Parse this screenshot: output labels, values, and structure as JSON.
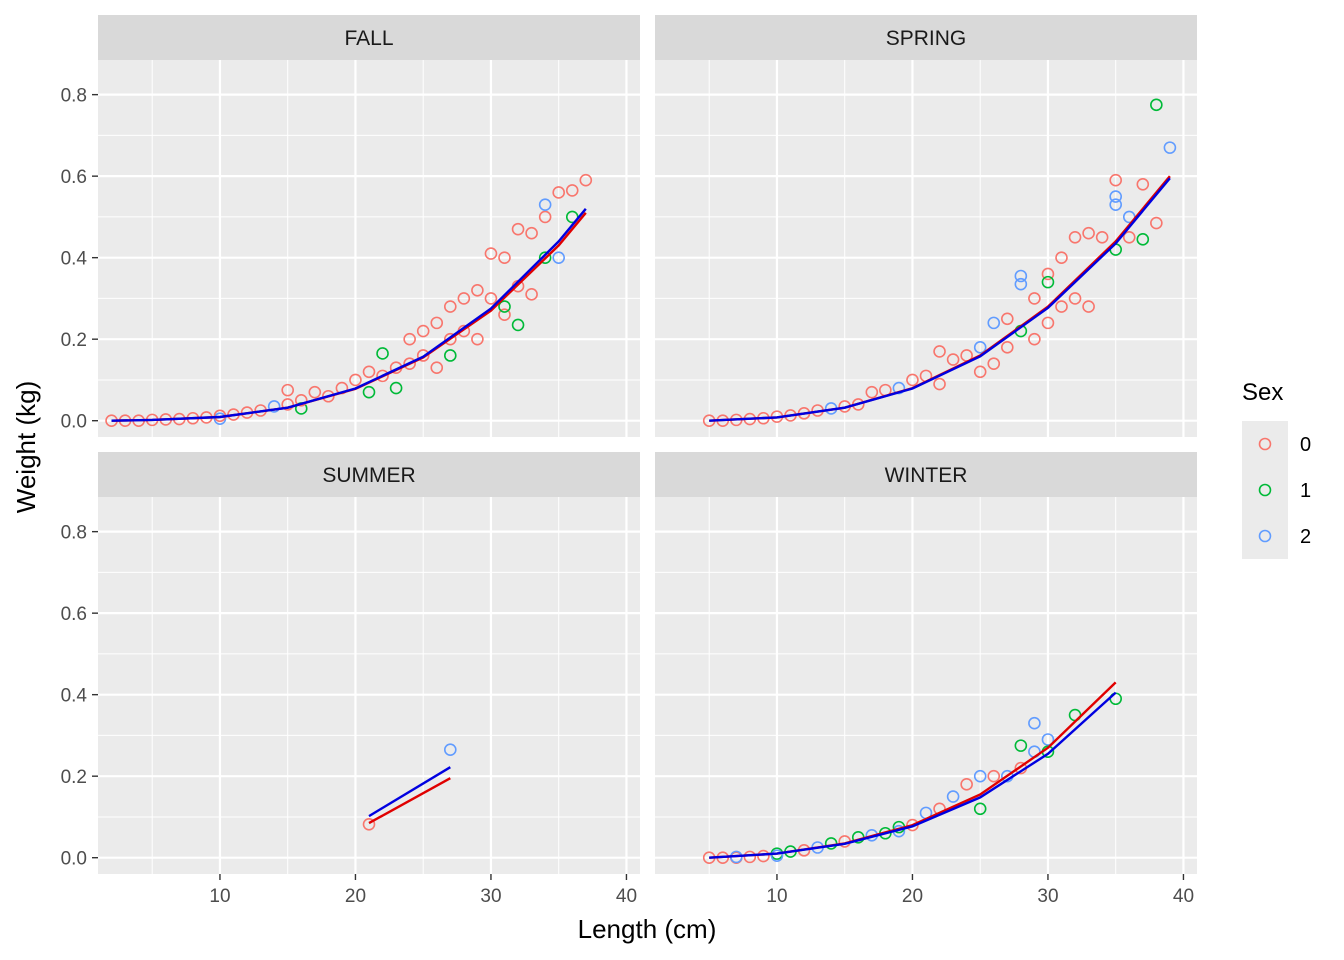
{
  "chart_data": {
    "type": "scatter",
    "facets": [
      "FALL",
      "SPRING",
      "SUMMER",
      "WINTER"
    ],
    "xlabel": "Length (cm)",
    "ylabel": "Weight (kg)",
    "xlim": [
      1,
      41
    ],
    "ylim": [
      -0.04,
      0.885
    ],
    "x_ticks": [
      10,
      20,
      30,
      40
    ],
    "y_ticks": [
      0.0,
      0.2,
      0.4,
      0.6,
      0.8
    ],
    "x_tick_labels": [
      "10",
      "20",
      "30",
      "40"
    ],
    "y_tick_labels": [
      "0.0",
      "0.2",
      "0.4",
      "0.6",
      "0.8"
    ],
    "legend": {
      "title": "Sex",
      "position": "right",
      "entries": [
        {
          "label": "0",
          "color": "#F8766D"
        },
        {
          "label": "1",
          "color": "#00BA38"
        },
        {
          "label": "2",
          "color": "#619CFF"
        }
      ]
    },
    "fit_line_colors": [
      "#E00000",
      "#0000E0"
    ],
    "panels": [
      {
        "name": "FALL",
        "points": [
          {
            "sex": 0,
            "x": 2,
            "y": 0.0
          },
          {
            "sex": 0,
            "x": 3,
            "y": 0.0
          },
          {
            "sex": 0,
            "x": 4,
            "y": 0.0
          },
          {
            "sex": 0,
            "x": 5,
            "y": 0.002
          },
          {
            "sex": 0,
            "x": 6,
            "y": 0.003
          },
          {
            "sex": 0,
            "x": 7,
            "y": 0.004
          },
          {
            "sex": 0,
            "x": 8,
            "y": 0.006
          },
          {
            "sex": 0,
            "x": 9,
            "y": 0.008
          },
          {
            "sex": 2,
            "x": 10,
            "y": 0.005
          },
          {
            "sex": 0,
            "x": 10,
            "y": 0.012
          },
          {
            "sex": 0,
            "x": 11,
            "y": 0.015
          },
          {
            "sex": 0,
            "x": 12,
            "y": 0.02
          },
          {
            "sex": 0,
            "x": 13,
            "y": 0.025
          },
          {
            "sex": 2,
            "x": 14,
            "y": 0.035
          },
          {
            "sex": 0,
            "x": 15,
            "y": 0.075
          },
          {
            "sex": 0,
            "x": 15,
            "y": 0.04
          },
          {
            "sex": 1,
            "x": 16,
            "y": 0.03
          },
          {
            "sex": 0,
            "x": 16,
            "y": 0.05
          },
          {
            "sex": 0,
            "x": 17,
            "y": 0.07
          },
          {
            "sex": 0,
            "x": 18,
            "y": 0.06
          },
          {
            "sex": 0,
            "x": 19,
            "y": 0.08
          },
          {
            "sex": 0,
            "x": 20,
            "y": 0.1
          },
          {
            "sex": 0,
            "x": 21,
            "y": 0.12
          },
          {
            "sex": 1,
            "x": 21,
            "y": 0.07
          },
          {
            "sex": 1,
            "x": 22,
            "y": 0.165
          },
          {
            "sex": 0,
            "x": 22,
            "y": 0.11
          },
          {
            "sex": 0,
            "x": 23,
            "y": 0.13
          },
          {
            "sex": 1,
            "x": 23,
            "y": 0.08
          },
          {
            "sex": 0,
            "x": 24,
            "y": 0.2
          },
          {
            "sex": 0,
            "x": 24,
            "y": 0.14
          },
          {
            "sex": 0,
            "x": 25,
            "y": 0.22
          },
          {
            "sex": 0,
            "x": 25,
            "y": 0.16
          },
          {
            "sex": 0,
            "x": 26,
            "y": 0.24
          },
          {
            "sex": 0,
            "x": 26,
            "y": 0.13
          },
          {
            "sex": 0,
            "x": 27,
            "y": 0.28
          },
          {
            "sex": 0,
            "x": 27,
            "y": 0.2
          },
          {
            "sex": 1,
            "x": 27,
            "y": 0.16
          },
          {
            "sex": 0,
            "x": 28,
            "y": 0.3
          },
          {
            "sex": 0,
            "x": 28,
            "y": 0.22
          },
          {
            "sex": 0,
            "x": 29,
            "y": 0.32
          },
          {
            "sex": 0,
            "x": 29,
            "y": 0.2
          },
          {
            "sex": 0,
            "x": 30,
            "y": 0.41
          },
          {
            "sex": 0,
            "x": 30,
            "y": 0.3
          },
          {
            "sex": 0,
            "x": 31,
            "y": 0.4
          },
          {
            "sex": 0,
            "x": 31,
            "y": 0.26
          },
          {
            "sex": 1,
            "x": 31,
            "y": 0.28
          },
          {
            "sex": 0,
            "x": 32,
            "y": 0.47
          },
          {
            "sex": 0,
            "x": 32,
            "y": 0.33
          },
          {
            "sex": 1,
            "x": 32,
            "y": 0.235
          },
          {
            "sex": 0,
            "x": 33,
            "y": 0.46
          },
          {
            "sex": 0,
            "x": 33,
            "y": 0.31
          },
          {
            "sex": 0,
            "x": 34,
            "y": 0.5
          },
          {
            "sex": 2,
            "x": 34,
            "y": 0.53
          },
          {
            "sex": 1,
            "x": 34,
            "y": 0.4
          },
          {
            "sex": 0,
            "x": 35,
            "y": 0.56
          },
          {
            "sex": 2,
            "x": 35,
            "y": 0.4
          },
          {
            "sex": 0,
            "x": 36,
            "y": 0.565
          },
          {
            "sex": 1,
            "x": 36,
            "y": 0.5
          },
          {
            "sex": 0,
            "x": 37,
            "y": 0.59
          }
        ],
        "fits": [
          {
            "color": "#E00000",
            "x": [
              2,
              5,
              10,
              15,
              20,
              25,
              30,
              35,
              37
            ],
            "y": [
              0.0,
              0.002,
              0.009,
              0.032,
              0.078,
              0.155,
              0.27,
              0.43,
              0.51
            ]
          },
          {
            "color": "#0000E0",
            "x": [
              2,
              5,
              10,
              15,
              20,
              25,
              30,
              35,
              37
            ],
            "y": [
              0.0,
              0.002,
              0.009,
              0.032,
              0.079,
              0.157,
              0.275,
              0.44,
              0.52
            ]
          }
        ]
      },
      {
        "name": "SPRING",
        "points": [
          {
            "sex": 0,
            "x": 5,
            "y": 0.0
          },
          {
            "sex": 0,
            "x": 6,
            "y": 0.0
          },
          {
            "sex": 0,
            "x": 7,
            "y": 0.002
          },
          {
            "sex": 0,
            "x": 8,
            "y": 0.004
          },
          {
            "sex": 0,
            "x": 9,
            "y": 0.006
          },
          {
            "sex": 0,
            "x": 10,
            "y": 0.01
          },
          {
            "sex": 0,
            "x": 11,
            "y": 0.013
          },
          {
            "sex": 0,
            "x": 12,
            "y": 0.018
          },
          {
            "sex": 0,
            "x": 13,
            "y": 0.025
          },
          {
            "sex": 2,
            "x": 14,
            "y": 0.03
          },
          {
            "sex": 0,
            "x": 15,
            "y": 0.035
          },
          {
            "sex": 0,
            "x": 16,
            "y": 0.04
          },
          {
            "sex": 0,
            "x": 17,
            "y": 0.07
          },
          {
            "sex": 0,
            "x": 18,
            "y": 0.075
          },
          {
            "sex": 2,
            "x": 19,
            "y": 0.08
          },
          {
            "sex": 0,
            "x": 20,
            "y": 0.1
          },
          {
            "sex": 0,
            "x": 21,
            "y": 0.11
          },
          {
            "sex": 0,
            "x": 22,
            "y": 0.17
          },
          {
            "sex": 0,
            "x": 22,
            "y": 0.09
          },
          {
            "sex": 0,
            "x": 23,
            "y": 0.15
          },
          {
            "sex": 0,
            "x": 24,
            "y": 0.16
          },
          {
            "sex": 2,
            "x": 25,
            "y": 0.18
          },
          {
            "sex": 0,
            "x": 25,
            "y": 0.12
          },
          {
            "sex": 2,
            "x": 26,
            "y": 0.24
          },
          {
            "sex": 0,
            "x": 26,
            "y": 0.14
          },
          {
            "sex": 0,
            "x": 27,
            "y": 0.25
          },
          {
            "sex": 0,
            "x": 27,
            "y": 0.18
          },
          {
            "sex": 2,
            "x": 28,
            "y": 0.355
          },
          {
            "sex": 2,
            "x": 28,
            "y": 0.335
          },
          {
            "sex": 1,
            "x": 28,
            "y": 0.22
          },
          {
            "sex": 0,
            "x": 29,
            "y": 0.3
          },
          {
            "sex": 0,
            "x": 29,
            "y": 0.2
          },
          {
            "sex": 0,
            "x": 30,
            "y": 0.36
          },
          {
            "sex": 1,
            "x": 30,
            "y": 0.34
          },
          {
            "sex": 0,
            "x": 30,
            "y": 0.24
          },
          {
            "sex": 0,
            "x": 31,
            "y": 0.4
          },
          {
            "sex": 0,
            "x": 31,
            "y": 0.28
          },
          {
            "sex": 0,
            "x": 32,
            "y": 0.45
          },
          {
            "sex": 0,
            "x": 32,
            "y": 0.3
          },
          {
            "sex": 0,
            "x": 33,
            "y": 0.46
          },
          {
            "sex": 0,
            "x": 33,
            "y": 0.28
          },
          {
            "sex": 0,
            "x": 34,
            "y": 0.45
          },
          {
            "sex": 0,
            "x": 35,
            "y": 0.59
          },
          {
            "sex": 2,
            "x": 35,
            "y": 0.55
          },
          {
            "sex": 2,
            "x": 35,
            "y": 0.53
          },
          {
            "sex": 1,
            "x": 35,
            "y": 0.42
          },
          {
            "sex": 2,
            "x": 36,
            "y": 0.5
          },
          {
            "sex": 0,
            "x": 36,
            "y": 0.45
          },
          {
            "sex": 0,
            "x": 37,
            "y": 0.58
          },
          {
            "sex": 1,
            "x": 37,
            "y": 0.445
          },
          {
            "sex": 1,
            "x": 38,
            "y": 0.775
          },
          {
            "sex": 0,
            "x": 38,
            "y": 0.485
          },
          {
            "sex": 2,
            "x": 39,
            "y": 0.67
          }
        ],
        "fits": [
          {
            "color": "#E00000",
            "x": [
              5,
              10,
              15,
              20,
              25,
              30,
              35,
              39
            ],
            "y": [
              0.0,
              0.008,
              0.032,
              0.08,
              0.16,
              0.28,
              0.44,
              0.6
            ]
          },
          {
            "color": "#0000E0",
            "x": [
              5,
              10,
              15,
              20,
              25,
              30,
              35,
              39
            ],
            "y": [
              0.0,
              0.008,
              0.032,
              0.079,
              0.158,
              0.277,
              0.435,
              0.595
            ]
          }
        ]
      },
      {
        "name": "SUMMER",
        "points": [
          {
            "sex": 0,
            "x": 21,
            "y": 0.082
          },
          {
            "sex": 2,
            "x": 27,
            "y": 0.265
          }
        ],
        "fits": [
          {
            "color": "#E00000",
            "x": [
              21,
              27
            ],
            "y": [
              0.085,
              0.195
            ]
          },
          {
            "color": "#0000E0",
            "x": [
              21,
              27
            ],
            "y": [
              0.102,
              0.222
            ]
          }
        ]
      },
      {
        "name": "WINTER",
        "points": [
          {
            "sex": 0,
            "x": 5,
            "y": 0.0
          },
          {
            "sex": 0,
            "x": 6,
            "y": 0.0
          },
          {
            "sex": 0,
            "x": 7,
            "y": 0.0
          },
          {
            "sex": 2,
            "x": 7,
            "y": 0.002
          },
          {
            "sex": 0,
            "x": 8,
            "y": 0.002
          },
          {
            "sex": 0,
            "x": 9,
            "y": 0.004
          },
          {
            "sex": 1,
            "x": 10,
            "y": 0.01
          },
          {
            "sex": 2,
            "x": 10,
            "y": 0.005
          },
          {
            "sex": 1,
            "x": 11,
            "y": 0.015
          },
          {
            "sex": 0,
            "x": 12,
            "y": 0.018
          },
          {
            "sex": 2,
            "x": 13,
            "y": 0.025
          },
          {
            "sex": 1,
            "x": 14,
            "y": 0.035
          },
          {
            "sex": 0,
            "x": 15,
            "y": 0.04
          },
          {
            "sex": 1,
            "x": 16,
            "y": 0.05
          },
          {
            "sex": 2,
            "x": 17,
            "y": 0.055
          },
          {
            "sex": 1,
            "x": 18,
            "y": 0.06
          },
          {
            "sex": 2,
            "x": 19,
            "y": 0.065
          },
          {
            "sex": 1,
            "x": 19,
            "y": 0.075
          },
          {
            "sex": 0,
            "x": 20,
            "y": 0.08
          },
          {
            "sex": 2,
            "x": 21,
            "y": 0.11
          },
          {
            "sex": 0,
            "x": 22,
            "y": 0.12
          },
          {
            "sex": 2,
            "x": 23,
            "y": 0.15
          },
          {
            "sex": 0,
            "x": 24,
            "y": 0.18
          },
          {
            "sex": 2,
            "x": 25,
            "y": 0.2
          },
          {
            "sex": 1,
            "x": 25,
            "y": 0.12
          },
          {
            "sex": 0,
            "x": 26,
            "y": 0.2
          },
          {
            "sex": 2,
            "x": 27,
            "y": 0.2
          },
          {
            "sex": 1,
            "x": 28,
            "y": 0.275
          },
          {
            "sex": 0,
            "x": 28,
            "y": 0.22
          },
          {
            "sex": 2,
            "x": 29,
            "y": 0.33
          },
          {
            "sex": 2,
            "x": 29,
            "y": 0.26
          },
          {
            "sex": 2,
            "x": 30,
            "y": 0.29
          },
          {
            "sex": 1,
            "x": 30,
            "y": 0.26
          },
          {
            "sex": 1,
            "x": 32,
            "y": 0.35
          },
          {
            "sex": 1,
            "x": 35,
            "y": 0.39
          }
        ],
        "fits": [
          {
            "color": "#E00000",
            "x": [
              5,
              10,
              15,
              20,
              25,
              30,
              35
            ],
            "y": [
              0.0,
              0.01,
              0.035,
              0.08,
              0.155,
              0.27,
              0.43
            ]
          },
          {
            "color": "#0000E0",
            "x": [
              5,
              10,
              15,
              20,
              25,
              30,
              35
            ],
            "y": [
              0.0,
              0.01,
              0.034,
              0.077,
              0.148,
              0.255,
              0.405
            ]
          }
        ]
      }
    ]
  }
}
